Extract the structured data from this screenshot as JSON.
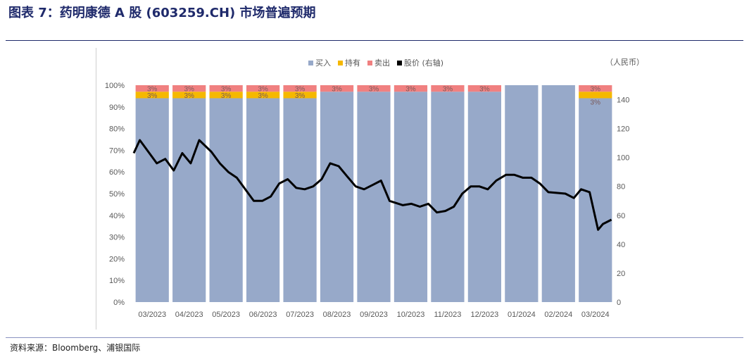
{
  "header": {
    "title": "图表 7：药明康德 A 股 (603259.CH) 市场普遍预期"
  },
  "footer": {
    "source": "资料来源：Bloomberg、浦银国际"
  },
  "chart_data": {
    "type": "bar",
    "stacked": true,
    "percent_stacked": true,
    "categories": [
      "03/2023",
      "04/2023",
      "05/2023",
      "06/2023",
      "07/2023",
      "08/2023",
      "09/2023",
      "10/2023",
      "11/2023",
      "12/2023",
      "01/2024",
      "02/2024",
      "03/2024"
    ],
    "series": [
      {
        "name": "买入",
        "color": "#97a9c9",
        "values": [
          94,
          94,
          94,
          94,
          94,
          97,
          97,
          97,
          97,
          97,
          100,
          100,
          94
        ]
      },
      {
        "name": "持有",
        "color": "#f5b800",
        "values": [
          3,
          3,
          3,
          3,
          3,
          0,
          0,
          0,
          0,
          0,
          0,
          0,
          3
        ]
      },
      {
        "name": "卖出",
        "color": "#f08080",
        "values": [
          3,
          3,
          3,
          3,
          3,
          3,
          3,
          3,
          3,
          3,
          0,
          0,
          3
        ]
      }
    ],
    "bar_labels": {
      "持有": [
        "3%",
        "3%",
        "3%",
        "3%",
        "3%",
        "",
        "",
        "",
        "",
        "",
        "",
        "",
        "3%"
      ],
      "卖出": [
        "3%",
        "3%",
        "3%",
        "3%",
        "3%",
        "3%",
        "3%",
        "3%",
        "3%",
        "3%",
        "",
        "",
        "3%"
      ]
    },
    "line_series": {
      "name": "股价 (右轴)",
      "color": "#000000",
      "x": [
        "2023-03-01",
        "2023-03-06",
        "2023-03-13",
        "2023-03-20",
        "2023-03-27",
        "2023-04-03",
        "2023-04-10",
        "2023-04-17",
        "2023-04-24",
        "2023-05-04",
        "2023-05-11",
        "2023-05-18",
        "2023-05-25",
        "2023-06-01",
        "2023-06-08",
        "2023-06-15",
        "2023-06-22",
        "2023-06-29",
        "2023-07-06",
        "2023-07-13",
        "2023-07-20",
        "2023-07-27",
        "2023-08-03",
        "2023-08-10",
        "2023-08-17",
        "2023-08-24",
        "2023-08-31",
        "2023-09-07",
        "2023-09-14",
        "2023-09-21",
        "2023-09-28",
        "2023-10-09",
        "2023-10-16",
        "2023-10-23",
        "2023-10-30",
        "2023-11-06",
        "2023-11-13",
        "2023-11-20",
        "2023-11-27",
        "2023-12-04",
        "2023-12-11",
        "2023-12-18",
        "2023-12-25",
        "2024-01-02",
        "2024-01-09",
        "2024-01-16",
        "2024-01-23",
        "2024-01-30",
        "2024-02-06",
        "2024-02-20",
        "2024-02-27",
        "2024-03-04",
        "2024-03-11",
        "2024-03-18",
        "2024-03-22",
        "2024-03-29"
      ],
      "values": [
        103,
        112,
        104,
        96,
        99,
        91,
        103,
        96,
        112,
        104,
        96,
        90,
        86,
        78,
        70,
        70,
        73,
        82,
        85,
        79,
        78,
        80,
        85,
        96,
        94,
        87,
        80,
        78,
        81,
        84,
        70,
        67,
        68,
        66,
        68,
        62,
        63,
        66,
        75,
        80,
        80,
        78,
        84,
        88,
        88,
        86,
        86,
        82,
        76,
        75,
        72,
        78,
        76,
        50,
        54,
        57
      ]
    },
    "y_left": {
      "min": 0,
      "max": 100,
      "step": 10,
      "format": "percent"
    },
    "y_right": {
      "min": 0,
      "max": 150,
      "ticks": [
        0,
        20,
        40,
        60,
        80,
        100,
        120,
        140
      ],
      "label": "（人民币）"
    },
    "legend": {
      "position": "top",
      "items": [
        "买入",
        "持有",
        "卖出",
        "股价 (右轴)"
      ]
    },
    "grid": false
  }
}
